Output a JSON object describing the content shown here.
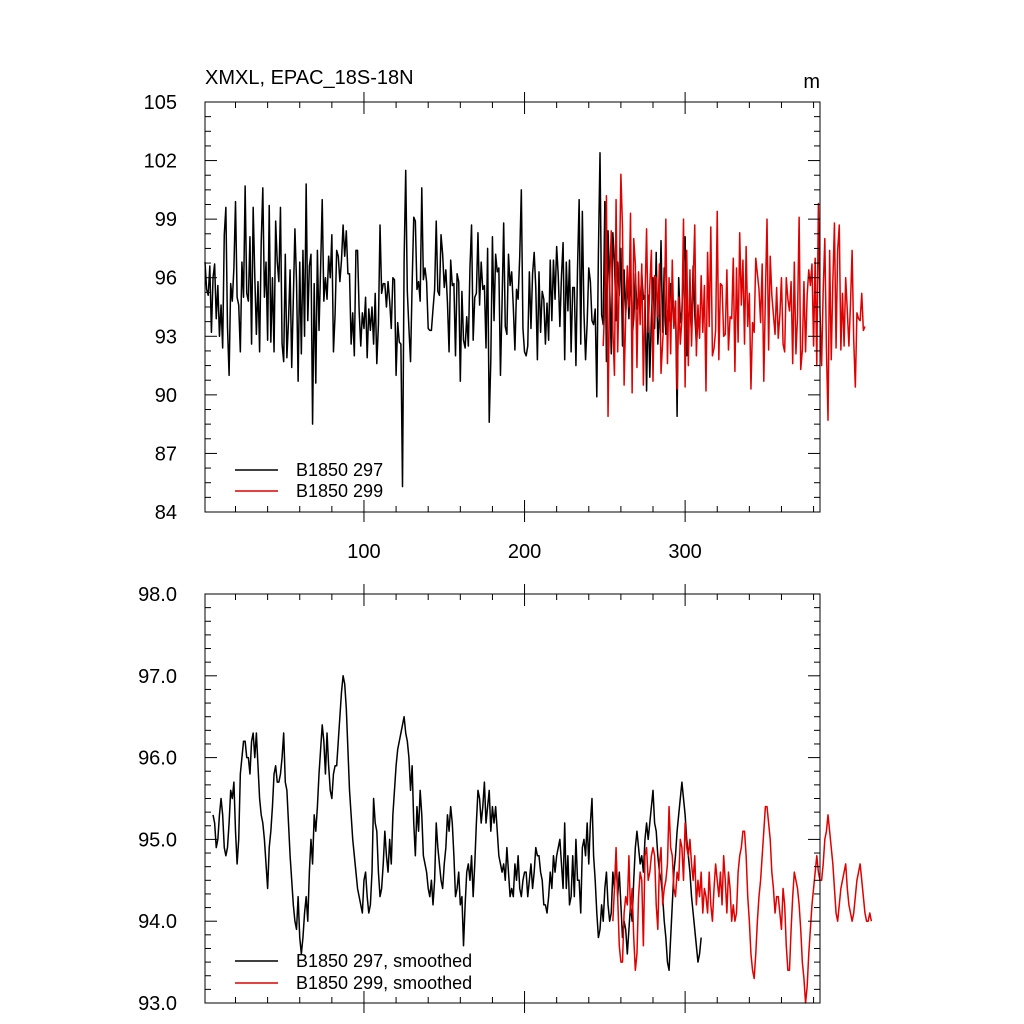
{
  "chart_data": [
    {
      "type": "line",
      "title_left": "XMXL, EPAC_18S-18N",
      "title_right": "m",
      "xlim": [
        1,
        384
      ],
      "ylim": [
        84,
        105
      ],
      "xticks": [
        100,
        200,
        300
      ],
      "yticks": [
        84,
        87,
        90,
        93,
        96,
        99,
        102,
        105
      ],
      "legend_position": "bottom-left",
      "series": [
        {
          "name": "B1850 297",
          "color": "#000000",
          "x_start": 1,
          "values": [
            96.8,
            95.4,
            95.1,
            96.6,
            93.2,
            96.0,
            96.7,
            93.9,
            95.6,
            93.0,
            94.6,
            92.4,
            98.2,
            99.6,
            93.5,
            91.0,
            95.7,
            94.8,
            96.5,
            99.9,
            95.0,
            94.6,
            92.2,
            96.8,
            95.0,
            100.7,
            95.2,
            94.8,
            98.1,
            92.6,
            99.6,
            96.1,
            93.1,
            95.8,
            92.2,
            97.8,
            100.6,
            95.0,
            96.8,
            92.8,
            99.7,
            92.7,
            96.0,
            92.2,
            98.9,
            96.8,
            95.8,
            99.6,
            92.6,
            91.7,
            97.2,
            91.9,
            93.8,
            96.4,
            91.4,
            94.9,
            98.5,
            95.8,
            90.7,
            96.8,
            92.1,
            97.4,
            93.0,
            100.8,
            93.8,
            96.6,
            97.2,
            88.5,
            95.7,
            90.6,
            97.4,
            93.3,
            96.5,
            100.0,
            94.8,
            96.0,
            94.9,
            97.1,
            96.0,
            98.2,
            92.2,
            94.1,
            97.4,
            97.1,
            95.8,
            96.9,
            98.7,
            97.1,
            98.4,
            96.2,
            96.2,
            92.6,
            94.2,
            92.0,
            97.4,
            97.4,
            94.3,
            92.5,
            94.2,
            93.4,
            95.0,
            91.9,
            94.4,
            93.3,
            94.5,
            92.6,
            95.2,
            91.6,
            93.6,
            98.7,
            95.2,
            95.7,
            95.7,
            94.5,
            95.8,
            94.8,
            93.4,
            96.0,
            95.9,
            91.0,
            93.7,
            92.7,
            92.6,
            85.3,
            96.9,
            101.5,
            95.3,
            93.4,
            91.7,
            95.7,
            99.1,
            98.9,
            95.4,
            95.8,
            94.8,
            100.6,
            95.9,
            96.5,
            95.8,
            93.4,
            93.3,
            93.3,
            94.4,
            95.4,
            98.9,
            95.3,
            95.1,
            98.2,
            97.2,
            95.5,
            96.4,
            94.7,
            92.2,
            96.9,
            95.6,
            95.7,
            92.0,
            96.2,
            95.8,
            90.7,
            95.3,
            92.8,
            92.4,
            94.0,
            92.5,
            96.5,
            98.7,
            92.8,
            95.0,
            95.2,
            98.3,
            94.6,
            96.8,
            95.4,
            95.6,
            92.4,
            97.5,
            88.6,
            91.8,
            98.1,
            93.8,
            97.2,
            96.3,
            96.5,
            91.0,
            94.7,
            98.8,
            93.5,
            93.1,
            97.2,
            95.6,
            96.3,
            94.5,
            92.3,
            95.4,
            94.9,
            97.1,
            100.5,
            93.4,
            92.2,
            92.0,
            92.5,
            96.3,
            93.4,
            96.2,
            97.3,
            95.5,
            91.8,
            96.3,
            93.2,
            95.3,
            94.9,
            92.6,
            94.7,
            92.8,
            96.9,
            93.8,
            96.9,
            94.9,
            97.6,
            96.1,
            93.5,
            96.1,
            97.8,
            91.8,
            96.8,
            94.3,
            96.9,
            92.2,
            95.5,
            95.5,
            91.5,
            96.5,
            100.0,
            92.6,
            99.4,
            94.2,
            91.8,
            93.7,
            96.5,
            95.8,
            93.8,
            93.6,
            94.4,
            89.9,
            97.3,
            102.4,
            94.1,
            93.6,
            99.9,
            91.7,
            98.4,
            95.5,
            92.1,
            98.3,
            96.8,
            93.8,
            96.8,
            95.1,
            97.5,
            92.5,
            96.4,
            94.1,
            96.0,
            93.9,
            96.7,
            92.9,
            93.9,
            96.2,
            94.4,
            95.1,
            94.6,
            96.2,
            94.9,
            95.1,
            90.2,
            95.1,
            90.9,
            94.0,
            96.0,
            93.4,
            97.3,
            92.6,
            94.1,
            97.9,
            93.2,
            96.5,
            93.1,
            94.3,
            93.8,
            95.7,
            95.0,
            93.5,
            94.8,
            88.9,
            96.0,
            93.7,
            94.3,
            96.6,
            98.1,
            92.0,
            93.8,
            94.7,
            93.1,
            96.6,
            94.2,
            92.6,
            93.8
          ]
        },
        {
          "name": "B1850 299",
          "color": "#e00000",
          "x_start": 249,
          "values": [
            92.5,
            94.7,
            100.2,
            88.9,
            95.8,
            98.4,
            93.3,
            91.0,
            100.0,
            92.2,
            95.8,
            101.3,
            98.6,
            90.5,
            94.1,
            96.6,
            94.5,
            99.3,
            90.1,
            98.0,
            96.7,
            91.4,
            96.3,
            93.6,
            96.7,
            90.5,
            94.9,
            98.5,
            93.2,
            95.6,
            97.4,
            90.7,
            96.1,
            96.0,
            94.0,
            96.7,
            91.1,
            92.7,
            94.1,
            99.0,
            91.6,
            96.0,
            92.1,
            96.9,
            93.4,
            94.8,
            90.3,
            95.0,
            92.6,
            93.9,
            99.0,
            90.4,
            97.4,
            91.5,
            96.4,
            92.5,
            95.7,
            98.7,
            92.0,
            94.6,
            92.9,
            96.1,
            93.2,
            95.6,
            90.2,
            97.3,
            93.5,
            98.6,
            92.0,
            92.4,
            93.3,
            99.4,
            91.8,
            95.7,
            95.6,
            93.0,
            93.1,
            96.4,
            92.3,
            94.0,
            93.9,
            97.0,
            91.2,
            96.5,
            92.7,
            98.3,
            94.6,
            96.9,
            92.6,
            97.6,
            93.5,
            95.2,
            90.3,
            93.7,
            93.2,
            97.0,
            96.2,
            95.4,
            93.7,
            96.7,
            90.7,
            95.1,
            99.0,
            92.3,
            97.1,
            95.1,
            94.1,
            93.1,
            95.5,
            92.9,
            94.1,
            96.0,
            92.6,
            92.2,
            96.0,
            94.9,
            94.3,
            95.8,
            91.6,
            96.8,
            92.1,
            94.0,
            99.1,
            91.3,
            92.3,
            95.8,
            92.2,
            95.1,
            96.4,
            95.6,
            96.7,
            92.5,
            97.0,
            91.5,
            99.8,
            94.3,
            91.5,
            95.4,
            98.0,
            92.4,
            88.7,
            97.4,
            91.8,
            95.8,
            98.8,
            92.4,
            97.4,
            98.7,
            92.3,
            95.2,
            92.5,
            96.0,
            94.3,
            92.5,
            94.7,
            97.4,
            92.8,
            90.4,
            94.2,
            93.9,
            93.8,
            95.2,
            93.3,
            93.5
          ]
        }
      ]
    },
    {
      "type": "line",
      "xlim": [
        1,
        384
      ],
      "ylim": [
        93.0,
        98.0
      ],
      "xticks": [
        100,
        200,
        300
      ],
      "yticks": [
        93.0,
        94.0,
        95.0,
        96.0,
        97.0,
        98.0
      ],
      "legend_position": "bottom-left",
      "series": [
        {
          "name": "B1850 297, smoothed",
          "color": "#000000",
          "x_start": 6,
          "values": [
            95.3,
            95.2,
            94.9,
            95.0,
            95.3,
            95.5,
            95.3,
            94.9,
            94.8,
            94.9,
            95.2,
            95.6,
            95.5,
            95.7,
            95.1,
            94.7,
            95.0,
            95.8,
            96.0,
            96.2,
            96.2,
            96.0,
            96.0,
            95.8,
            96.2,
            96.3,
            96.0,
            96.3,
            95.9,
            95.5,
            95.3,
            95.2,
            95.0,
            94.7,
            94.4,
            94.9,
            95.1,
            95.4,
            95.8,
            95.9,
            95.7,
            95.7,
            95.8,
            96.0,
            96.3,
            95.7,
            95.6,
            95.2,
            94.8,
            94.5,
            94.2,
            94.0,
            93.9,
            94.3,
            93.8,
            93.6,
            93.8,
            94.1,
            94.3,
            94.0,
            94.6,
            95.0,
            94.7,
            95.3,
            95.1,
            95.4,
            95.8,
            96.1,
            96.4,
            96.2,
            95.8,
            96.3,
            95.9,
            95.6,
            95.5,
            95.8,
            95.9,
            95.9,
            96.2,
            96.5,
            96.8,
            97.0,
            96.9,
            96.6,
            96.1,
            95.6,
            95.3,
            95.0,
            94.8,
            94.6,
            94.4,
            94.3,
            94.2,
            94.1,
            94.5,
            94.6,
            94.3,
            94.1,
            94.2,
            94.6,
            95.5,
            95.2,
            95.1,
            94.6,
            94.3,
            94.4,
            94.7,
            95.1,
            94.8,
            94.6,
            95.0,
            94.7,
            95.3,
            95.6,
            95.9,
            96.1,
            96.2,
            96.3,
            96.4,
            96.5,
            96.3,
            96.2,
            96.0,
            95.6,
            95.9,
            95.2,
            94.8,
            95.4,
            95.1,
            95.6,
            95.3,
            94.8,
            94.7,
            94.6,
            94.4,
            94.3,
            94.5,
            94.2,
            94.5,
            95.2,
            94.9,
            94.7,
            94.5,
            94.4,
            94.7,
            94.9,
            95.3,
            95.1,
            95.4,
            95.2,
            94.8,
            94.3,
            94.4,
            94.6,
            94.2,
            94.3,
            93.7,
            94.2,
            94.6,
            94.7,
            94.5,
            94.8,
            94.3,
            94.7,
            95.2,
            95.6,
            95.5,
            95.2,
            95.4,
            95.7,
            95.2,
            95.4,
            95.6,
            95.1,
            95.4,
            95.2,
            95.4,
            95.1,
            94.8,
            94.7,
            94.6,
            94.7,
            94.5,
            94.9,
            94.6,
            94.3,
            94.4,
            94.3,
            94.7,
            94.5,
            94.8,
            94.4,
            94.3,
            94.5,
            94.6,
            94.6,
            94.3,
            94.5,
            94.7,
            94.4,
            94.6,
            94.9,
            94.8,
            94.8,
            94.6,
            94.5,
            94.2,
            94.2,
            94.1,
            94.3,
            94.6,
            94.4,
            94.8,
            94.6,
            94.8,
            94.9,
            95.0,
            94.7,
            94.4,
            95.2,
            94.4,
            94.8,
            94.2,
            94.3,
            94.8,
            94.3,
            95.0,
            94.5,
            94.5,
            94.1,
            94.9,
            95.0,
            94.8,
            95.2,
            94.7,
            95.2,
            95.5,
            94.8,
            94.5,
            94.1,
            93.8,
            93.9,
            94.2,
            94.0,
            94.4,
            94.6,
            94.2,
            94.0,
            94.1,
            94.6,
            94.4,
            94.8,
            94.3,
            94.6,
            94.2,
            93.8,
            94.0,
            93.9,
            93.6,
            93.9,
            94.2,
            94.0,
            94.5,
            94.9,
            95.1,
            94.9,
            94.7,
            94.8,
            94.6,
            95.0,
            95.2,
            95.0,
            95.2,
            95.4,
            95.6,
            95.2,
            95.1,
            94.8,
            94.6,
            94.5,
            94.3,
            94.0,
            93.8,
            93.5,
            93.4,
            93.8,
            94.2,
            94.6,
            94.8,
            95.1,
            95.3,
            95.5,
            95.7,
            95.5,
            95.3,
            95.0,
            94.8,
            94.6,
            94.3,
            94.1,
            93.9,
            93.7,
            93.5,
            93.6,
            93.8
          ]
        },
        {
          "name": "B1850 299, smoothed",
          "color": "#e00000",
          "x_start": 255,
          "values": [
            94.0,
            94.4,
            94.9,
            94.3,
            93.7,
            93.5,
            93.5,
            94.1,
            94.3,
            94.2,
            94.8,
            94.1,
            94.4,
            93.8,
            93.4,
            93.6,
            94.3,
            94.6,
            94.5,
            93.7,
            94.8,
            94.9,
            94.5,
            94.6,
            94.8,
            94.9,
            94.8,
            94.2,
            93.9,
            94.7,
            94.9,
            94.2,
            94.4,
            94.5,
            94.7,
            95.4,
            94.9,
            94.8,
            94.4,
            94.3,
            94.6,
            94.5,
            95.0,
            94.9,
            94.5,
            95.2,
            94.9,
            94.8,
            95.0,
            94.7,
            94.5,
            94.8,
            94.2,
            94.5,
            94.3,
            94.6,
            94.1,
            94.4,
            94.3,
            94.1,
            94.6,
            94.2,
            94.0,
            94.4,
            94.7,
            94.5,
            94.3,
            94.6,
            94.2,
            94.8,
            94.5,
            94.1,
            94.6,
            94.4,
            94.0,
            94.2,
            94.0,
            94.1,
            94.6,
            94.8,
            94.9,
            95.1,
            95.1,
            94.8,
            94.3,
            94.0,
            93.6,
            93.4,
            93.3,
            93.6,
            94.0,
            94.3,
            94.5,
            94.8,
            95.1,
            95.4,
            95.4,
            95.2,
            95.0,
            94.6,
            94.4,
            94.1,
            94.3,
            94.3,
            94.1,
            93.9,
            94.4,
            94.2,
            93.7,
            93.4,
            93.4,
            93.9,
            94.3,
            94.6,
            94.5,
            94.4,
            94.2,
            93.9,
            93.5,
            93.3,
            93.0,
            93.2,
            93.6,
            93.9,
            94.2,
            94.4,
            94.6,
            94.8,
            94.6,
            94.5,
            94.5,
            94.7,
            95.0,
            95.1,
            95.3,
            95.1,
            94.9,
            94.7,
            94.4,
            94.1,
            94.0,
            94.2,
            94.4,
            94.5,
            94.6,
            94.7,
            94.4,
            94.2,
            94.1,
            94.0,
            94.1,
            94.3,
            94.5,
            94.6,
            94.7,
            94.5,
            94.3,
            94.1,
            94.0,
            94.0,
            94.1,
            94.0
          ]
        }
      ]
    }
  ]
}
